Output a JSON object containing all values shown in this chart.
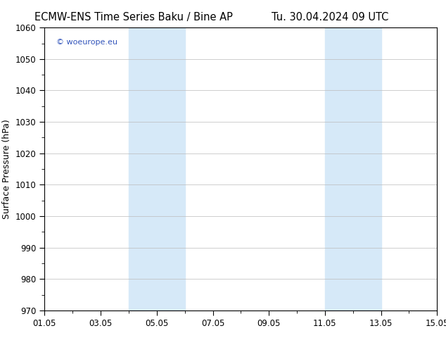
{
  "title_left": "ECMW-ENS Time Series Baku / Bine AP",
  "title_right": "Tu. 30.04.2024 09 UTC",
  "ylabel": "Surface Pressure (hPa)",
  "ylim": [
    970,
    1060
  ],
  "yticks": [
    970,
    980,
    990,
    1000,
    1010,
    1020,
    1030,
    1040,
    1050,
    1060
  ],
  "xlim_start": 0,
  "xlim_end": 14,
  "xtick_labels": [
    "01.05",
    "03.05",
    "05.05",
    "07.05",
    "09.05",
    "11.05",
    "13.05",
    "15.05"
  ],
  "xtick_positions": [
    0,
    2,
    4,
    6,
    8,
    10,
    12,
    14
  ],
  "shaded_bands": [
    {
      "x_start": 3.0,
      "x_end": 4.0
    },
    {
      "x_start": 4.0,
      "x_end": 5.0
    },
    {
      "x_start": 10.0,
      "x_end": 11.0
    },
    {
      "x_start": 11.0,
      "x_end": 12.0
    }
  ],
  "shaded_color_1": "#d6e9f8",
  "shaded_color_2": "#d6e9f8",
  "background_color": "#ffffff",
  "spine_color": "#000000",
  "tick_color": "#000000",
  "grid_color": "#bbbbbb",
  "title_fontsize": 10.5,
  "axis_label_fontsize": 9,
  "tick_fontsize": 8.5,
  "watermark_text": "© woeurope.eu",
  "watermark_color": "#3355bb",
  "watermark_fontsize": 8
}
